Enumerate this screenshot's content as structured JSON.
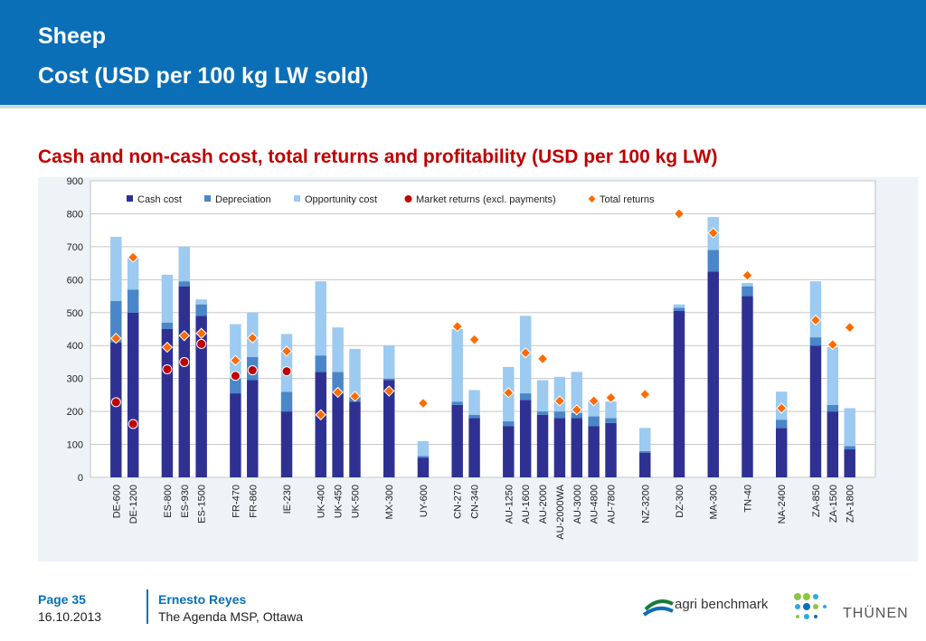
{
  "header": {
    "title": "Sheep",
    "subtitle": "Cost (USD per 100 kg LW sold)"
  },
  "chart_title": "Cash and non-cash cost, total returns and profitability (USD per 100 kg LW)",
  "chart_data": {
    "type": "bar",
    "stacked": true,
    "title": "Cash and non-cash cost, total returns and profitability (USD per 100 kg LW)",
    "ylim": [
      0,
      900
    ],
    "yticks": [
      0,
      100,
      200,
      300,
      400,
      500,
      600,
      700,
      800,
      900
    ],
    "grid": true,
    "legend_position": "top",
    "categories": [
      "DE-600",
      "DE-1200",
      "ES-800",
      "ES-930",
      "ES-1500",
      "FR-470",
      "FR-860",
      "IE-230",
      "UK-400",
      "UK-450",
      "UK-500",
      "MX-300",
      "UY-600",
      "CN-270",
      "CN-340",
      "AU-1250",
      "AU-1600",
      "AU-2000",
      "AU-2000WA",
      "AU-3000",
      "AU-4800",
      "AU-7800",
      "NZ-3200",
      "DZ-300",
      "MA-300",
      "TN-40",
      "NA-2400",
      "ZA-850",
      "ZA-1500",
      "ZA-1800"
    ],
    "groups": [
      [
        0,
        1
      ],
      [
        2,
        3,
        4
      ],
      [
        5,
        6
      ],
      [
        7
      ],
      [
        8,
        9,
        10
      ],
      [
        11
      ],
      [
        12
      ],
      [
        13,
        14
      ],
      [
        15,
        16,
        17,
        18,
        19,
        20,
        21
      ],
      [
        22
      ],
      [
        23
      ],
      [
        24
      ],
      [
        25
      ],
      [
        26
      ],
      [
        27,
        28,
        29
      ]
    ],
    "series": [
      {
        "name": "Cash cost",
        "kind": "bar",
        "color": "#2e3192",
        "values": [
          410,
          500,
          450,
          580,
          490,
          255,
          295,
          200,
          320,
          260,
          230,
          295,
          60,
          220,
          180,
          155,
          235,
          190,
          180,
          180,
          155,
          165,
          75,
          505,
          625,
          550,
          150,
          400,
          200,
          85
        ]
      },
      {
        "name": "Depreciation",
        "kind": "bar",
        "color": "#4a86c8",
        "values": [
          125,
          70,
          20,
          15,
          35,
          45,
          70,
          60,
          50,
          60,
          15,
          5,
          5,
          10,
          10,
          15,
          20,
          10,
          20,
          15,
          30,
          15,
          5,
          10,
          65,
          30,
          25,
          25,
          20,
          10
        ]
      },
      {
        "name": "Opportunity cost",
        "kind": "bar",
        "color": "#9ccaf0",
        "values": [
          195,
          95,
          145,
          105,
          15,
          165,
          135,
          175,
          225,
          135,
          145,
          100,
          45,
          220,
          75,
          165,
          235,
          95,
          105,
          125,
          50,
          50,
          70,
          10,
          100,
          10,
          85,
          170,
          175,
          115
        ]
      },
      {
        "name": "Market returns (excl. payments)",
        "kind": "marker",
        "shape": "circle",
        "color": "#c00000",
        "values": [
          228,
          162,
          328,
          350,
          405,
          308,
          325,
          322,
          null,
          null,
          null,
          null,
          null,
          null,
          null,
          null,
          null,
          null,
          null,
          null,
          null,
          null,
          null,
          null,
          null,
          null,
          null,
          null,
          null,
          null
        ]
      },
      {
        "name": "Total returns",
        "kind": "marker",
        "shape": "diamond",
        "color": "#ff6a00",
        "values": [
          422,
          668,
          395,
          430,
          437,
          355,
          423,
          383,
          190,
          258,
          246,
          262,
          225,
          458,
          418,
          257,
          378,
          360,
          232,
          205,
          232,
          242,
          252,
          800,
          742,
          613,
          210,
          477,
          403,
          455
        ]
      }
    ]
  }
}
